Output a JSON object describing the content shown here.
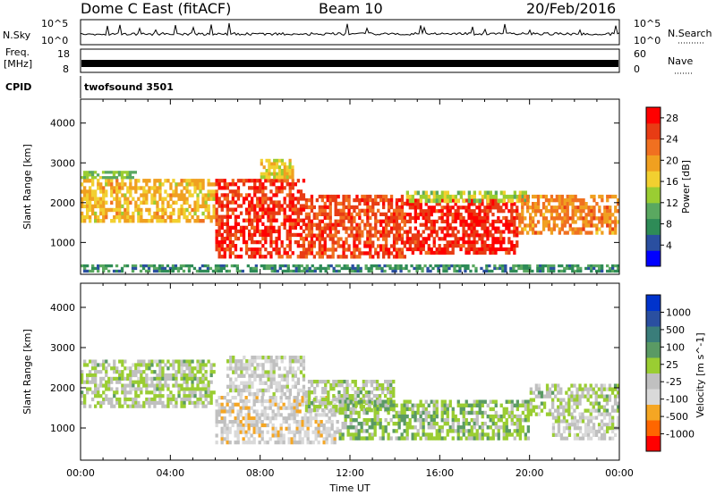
{
  "header": {
    "station": "Dome C East (fitACF)",
    "beam": "Beam 10",
    "date": "20/Feb/2016"
  },
  "noise_panel": {
    "left_label": "N.Sky",
    "left_top_tick": "10^5",
    "left_bottom_tick": "10^0",
    "right_label": "N.Search",
    "right_top_tick": "10^5",
    "right_bottom_tick": "10^0"
  },
  "freq_panel": {
    "left_label": "Freq.",
    "left_unit": "[MHz]",
    "left_top_tick": "18",
    "left_bottom_tick": "8",
    "right_label": "Nave",
    "right_top_tick": "60",
    "right_bottom_tick": "0"
  },
  "cpid_panel": {
    "label": "CPID",
    "program": "twofsound 3501"
  },
  "colors": {
    "power": [
      "#0000ff",
      "#2a4fa0",
      "#2e8b57",
      "#5aa860",
      "#9acd32",
      "#f2d030",
      "#f0a020",
      "#f07020",
      "#e83c14",
      "#ff0000"
    ],
    "velocity": [
      "#ff0000",
      "#ff6600",
      "#f5a623",
      "#d9d9d9",
      "#c0c0c0",
      "#9acd32",
      "#5a9a64",
      "#3a7d7a",
      "#2a4fa0",
      "#0033cc"
    ],
    "frame": "#000000"
  },
  "chart_data": [
    {
      "type": "heatmap",
      "title": "",
      "xlabel": "",
      "ylabel": "Slant Range [km]",
      "xlim": [
        "00:00",
        "24:00"
      ],
      "ylim": [
        200,
        4600
      ],
      "yticks": [
        "1000",
        "2000",
        "3000",
        "4000"
      ],
      "colorbar": {
        "label": "Power [dB]",
        "ticks": [
          "4",
          "8",
          "12",
          "16",
          "20",
          "24",
          "28"
        ],
        "range": [
          0,
          30
        ]
      },
      "bands": [
        {
          "t_start": 0.0,
          "t_end": 6.0,
          "range_start": 1500,
          "range_end": 2600,
          "value": 18
        },
        {
          "t_start": 0.0,
          "t_end": 2.5,
          "range_start": 2600,
          "range_end": 2800,
          "value": 12
        },
        {
          "t_start": 6.0,
          "t_end": 10.0,
          "range_start": 600,
          "range_end": 2600,
          "value": 26
        },
        {
          "t_start": 8.0,
          "t_end": 9.5,
          "range_start": 2600,
          "range_end": 3100,
          "value": 16
        },
        {
          "t_start": 10.0,
          "t_end": 14.5,
          "range_start": 600,
          "range_end": 2200,
          "value": 25
        },
        {
          "t_start": 14.5,
          "t_end": 19.5,
          "range_start": 700,
          "range_end": 2100,
          "value": 27
        },
        {
          "t_start": 14.5,
          "t_end": 20.0,
          "range_start": 2000,
          "range_end": 2300,
          "value": 14
        },
        {
          "t_start": 19.5,
          "t_end": 24.0,
          "range_start": 1200,
          "range_end": 2200,
          "value": 21
        },
        {
          "t_start": 0.0,
          "t_end": 24.0,
          "range_start": 250,
          "range_end": 450,
          "value": 8
        }
      ]
    },
    {
      "type": "heatmap",
      "title": "",
      "xlabel": "Time UT",
      "ylabel": "Slant Range [km]",
      "xlim": [
        "00:00",
        "24:00"
      ],
      "ylim": [
        200,
        4600
      ],
      "xticks": [
        "00:00",
        "04:00",
        "08:00",
        "12:00",
        "16:00",
        "20:00",
        "00:00"
      ],
      "yticks": [
        "1000",
        "2000",
        "3000",
        "4000"
      ],
      "colorbar": {
        "label": "Velocity [m s^-1]",
        "ticks": [
          "1000",
          "500",
          "100",
          "25",
          "-25",
          "-100",
          "-500",
          "-1000"
        ],
        "range": [
          -1200,
          1200
        ]
      },
      "bands": [
        {
          "t_start": 0.0,
          "t_end": 6.0,
          "range_start": 1500,
          "range_end": 2700,
          "value": 0
        },
        {
          "t_start": 6.0,
          "t_end": 11.5,
          "range_start": 600,
          "range_end": 1800,
          "value": -300
        },
        {
          "t_start": 6.5,
          "t_end": 10.0,
          "range_start": 1800,
          "range_end": 2800,
          "value": -200
        },
        {
          "t_start": 10.0,
          "t_end": 14.0,
          "range_start": 1400,
          "range_end": 2200,
          "value": 5
        },
        {
          "t_start": 11.5,
          "t_end": 20.0,
          "range_start": 700,
          "range_end": 1700,
          "value": 150
        },
        {
          "t_start": 20.0,
          "t_end": 24.0,
          "range_start": 1300,
          "range_end": 2100,
          "value": 0
        },
        {
          "t_start": 21.0,
          "t_end": 24.0,
          "range_start": 700,
          "range_end": 1300,
          "value": -200
        }
      ]
    }
  ]
}
